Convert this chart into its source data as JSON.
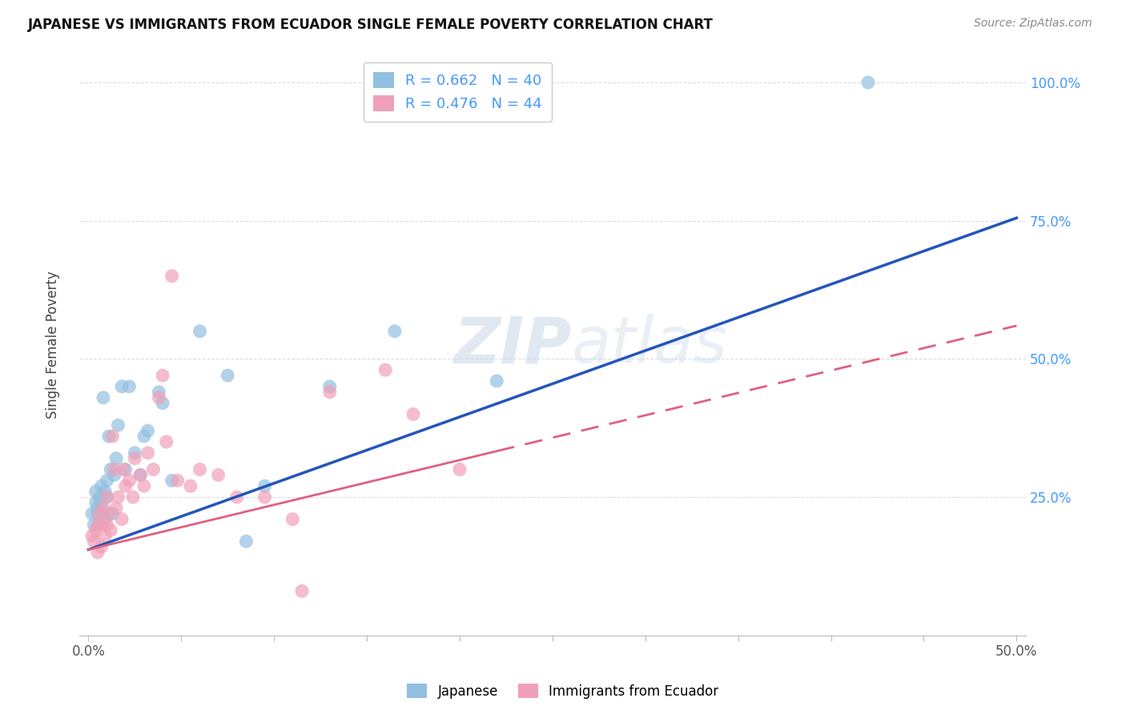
{
  "title": "JAPANESE VS IMMIGRANTS FROM ECUADOR SINGLE FEMALE POVERTY CORRELATION CHART",
  "source": "Source: ZipAtlas.com",
  "ylabel_label": "Single Female Poverty",
  "x_tick_labels": [
    "0.0%",
    "",
    "",
    "",
    "",
    "",
    "",
    "",
    "",
    "",
    "50.0%"
  ],
  "x_tick_values": [
    0.0,
    0.05,
    0.1,
    0.15,
    0.2,
    0.25,
    0.3,
    0.35,
    0.4,
    0.45,
    0.5
  ],
  "y_tick_labels": [
    "",
    "25.0%",
    "50.0%",
    "75.0%",
    "100.0%"
  ],
  "y_tick_values": [
    0.0,
    0.25,
    0.5,
    0.75,
    1.0
  ],
  "xlim": [
    -0.005,
    0.505
  ],
  "ylim": [
    0.0,
    1.05
  ],
  "japanese_R": 0.662,
  "japanese_N": 40,
  "ecuador_R": 0.476,
  "ecuador_N": 44,
  "japanese_color": "#92C0E0",
  "ecuador_color": "#F0A0B8",
  "japanese_line_color": "#2255BB",
  "ecuador_line_color": "#E06080",
  "background_color": "#FFFFFF",
  "grid_color": "#DDDDDD",
  "watermark_color": "#C8D8E8",
  "legend_japanese_label": "Japanese",
  "legend_ecuador_label": "Immigrants from Ecuador",
  "japanese_line_x0": 0.0,
  "japanese_line_y0": 0.155,
  "japanese_line_x1": 0.5,
  "japanese_line_y1": 0.755,
  "ecuador_line_x0": 0.0,
  "ecuador_line_y0": 0.155,
  "ecuador_line_x1": 0.5,
  "ecuador_line_y1": 0.56,
  "japanese_x": [
    0.002,
    0.003,
    0.004,
    0.004,
    0.005,
    0.005,
    0.006,
    0.006,
    0.007,
    0.007,
    0.008,
    0.008,
    0.009,
    0.009,
    0.01,
    0.01,
    0.011,
    0.012,
    0.013,
    0.014,
    0.015,
    0.016,
    0.018,
    0.02,
    0.022,
    0.025,
    0.028,
    0.03,
    0.032,
    0.038,
    0.04,
    0.045,
    0.06,
    0.075,
    0.085,
    0.095,
    0.13,
    0.165,
    0.22,
    0.42
  ],
  "japanese_y": [
    0.22,
    0.2,
    0.24,
    0.26,
    0.22,
    0.23,
    0.25,
    0.2,
    0.27,
    0.24,
    0.22,
    0.43,
    0.21,
    0.26,
    0.25,
    0.28,
    0.36,
    0.3,
    0.22,
    0.29,
    0.32,
    0.38,
    0.45,
    0.3,
    0.45,
    0.33,
    0.29,
    0.36,
    0.37,
    0.44,
    0.42,
    0.28,
    0.55,
    0.47,
    0.17,
    0.27,
    0.45,
    0.55,
    0.46,
    1.0
  ],
  "ecuador_x": [
    0.002,
    0.003,
    0.004,
    0.005,
    0.005,
    0.006,
    0.007,
    0.007,
    0.008,
    0.009,
    0.01,
    0.01,
    0.011,
    0.012,
    0.013,
    0.014,
    0.015,
    0.016,
    0.018,
    0.019,
    0.02,
    0.022,
    0.024,
    0.025,
    0.028,
    0.03,
    0.032,
    0.035,
    0.038,
    0.04,
    0.042,
    0.045,
    0.048,
    0.055,
    0.06,
    0.07,
    0.08,
    0.095,
    0.11,
    0.13,
    0.16,
    0.175,
    0.2,
    0.115
  ],
  "ecuador_y": [
    0.18,
    0.17,
    0.19,
    0.2,
    0.15,
    0.22,
    0.16,
    0.2,
    0.23,
    0.18,
    0.2,
    0.25,
    0.22,
    0.19,
    0.36,
    0.3,
    0.23,
    0.25,
    0.21,
    0.3,
    0.27,
    0.28,
    0.25,
    0.32,
    0.29,
    0.27,
    0.33,
    0.3,
    0.43,
    0.47,
    0.35,
    0.65,
    0.28,
    0.27,
    0.3,
    0.29,
    0.25,
    0.25,
    0.21,
    0.44,
    0.48,
    0.4,
    0.3,
    0.08
  ]
}
